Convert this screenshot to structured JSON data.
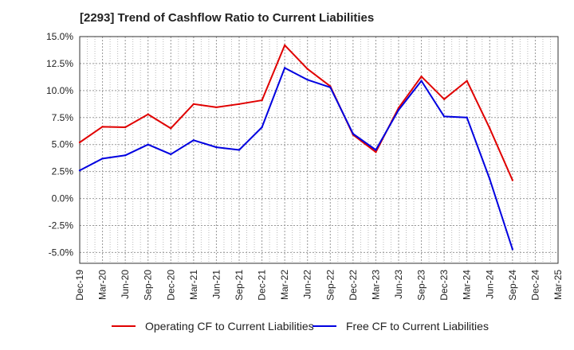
{
  "chart_data": {
    "type": "line",
    "title": "[2293]  Trend of Cashflow Ratio to Current Liabilities",
    "xlabel": "",
    "ylabel": "",
    "ylim": [
      -6.0,
      15.0
    ],
    "y_ticks": [
      "15.0%",
      "12.5%",
      "10.0%",
      "7.5%",
      "5.0%",
      "2.5%",
      "0.0%",
      "-2.5%",
      "-5.0%"
    ],
    "y_tick_values": [
      15.0,
      12.5,
      10.0,
      7.5,
      5.0,
      2.5,
      0.0,
      -2.5,
      -5.0
    ],
    "x_ticks": [
      "Dec-19",
      "Mar-20",
      "Jun-20",
      "Sep-20",
      "Dec-20",
      "Mar-21",
      "Jun-21",
      "Sep-21",
      "Dec-21",
      "Mar-22",
      "Jun-22",
      "Sep-22",
      "Dec-22",
      "Mar-23",
      "Jun-23",
      "Sep-23",
      "Dec-23",
      "Mar-24",
      "Jun-24",
      "Sep-24",
      "Dec-24",
      "Mar-25"
    ],
    "grid": true,
    "legend_position": "bottom",
    "series": [
      {
        "name": "Operating CF to Current Liabilities",
        "color": "#e00000",
        "values": [
          5.2,
          6.65,
          6.6,
          7.8,
          6.5,
          8.75,
          8.45,
          8.75,
          9.1,
          14.2,
          12.0,
          10.4,
          5.9,
          4.3,
          8.4,
          11.3,
          9.2,
          10.9,
          6.5,
          1.7
        ]
      },
      {
        "name": "Free CF to Current Liabilities",
        "color": "#0000e0",
        "values": [
          2.6,
          3.7,
          4.0,
          5.0,
          4.1,
          5.4,
          4.75,
          4.5,
          6.6,
          12.1,
          11.0,
          10.3,
          6.0,
          4.5,
          8.2,
          10.9,
          7.6,
          7.5,
          1.8,
          -4.7
        ]
      }
    ]
  }
}
